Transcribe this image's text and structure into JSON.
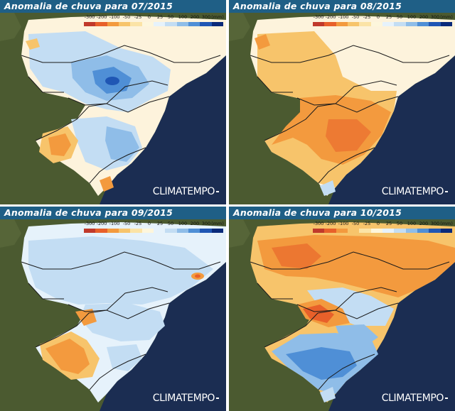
{
  "panels": [
    {
      "title": "Anomalia de chuva para 07/2015",
      "brand": "CLIMATEMPO"
    },
    {
      "title": "Anomalia de chuva para 08/2015",
      "brand": "CLIMATEMPO"
    },
    {
      "title": "Anomalia de chuva para 09/2015",
      "brand": "CLIMATEMPO"
    },
    {
      "title": "Anomalia de chuva para 10/2015",
      "brand": "CLIMATEMPO"
    }
  ],
  "legend": {
    "labels": [
      "-300",
      "-200",
      "-100",
      "-50",
      "-25",
      "0",
      "25",
      "50",
      "100",
      "200",
      "300",
      "(mm)"
    ],
    "colors": [
      "#c0392b",
      "#e8602a",
      "#f39a3e",
      "#f7c46b",
      "#fbe3a6",
      "#fdf6dc",
      "#e6f2fb",
      "#c3ddf3",
      "#8fbde8",
      "#4f8fd6",
      "#1f56b4",
      "#0a2a7a"
    ]
  },
  "colors": {
    "title_bar": "#1f5f86",
    "ocean": "#1a2a4a",
    "land_satellite": "#4a5a32",
    "dry": "#f39a3e",
    "wet": "#6fa6e4"
  }
}
